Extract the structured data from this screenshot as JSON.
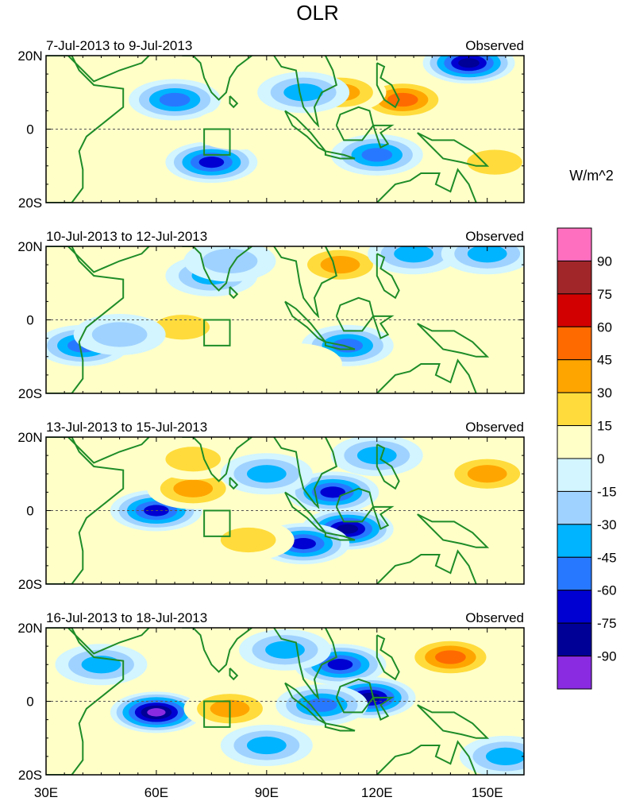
{
  "figure": {
    "title": "OLR",
    "units_label": "W/m^2"
  },
  "chart_data": {
    "type": "heatmap",
    "variable": "OLR anomaly",
    "x_ticks": [
      "30E",
      "60E",
      "90E",
      "120E",
      "150E"
    ],
    "x_tick_values": [
      30,
      60,
      90,
      120,
      150
    ],
    "y_ticks": [
      "20N",
      "0",
      "20S"
    ],
    "y_tick_values": [
      20,
      0,
      -20
    ],
    "xlim": [
      30,
      160
    ],
    "ylim": [
      -20,
      20
    ],
    "colorbar": {
      "labels": [
        "90",
        "75",
        "60",
        "45",
        "30",
        "15",
        "0",
        "-15",
        "-30",
        "-45",
        "-60",
        "-75",
        "-90"
      ],
      "levels": [
        90,
        75,
        60,
        45,
        30,
        15,
        0,
        -15,
        -30,
        -45,
        -60,
        -75,
        -90
      ],
      "colors": [
        "#ff6fc0",
        "#a0262a",
        "#d20000",
        "#ff6a00",
        "#ffa500",
        "#ffdc3c",
        "#ffffc8",
        "#d2f5ff",
        "#a0d2ff",
        "#00b4ff",
        "#2878ff",
        "#0000d2",
        "#000096",
        "#8a2be2"
      ]
    },
    "panels": [
      {
        "period": "7-Jul-2013 to 9-Jul-2013",
        "tag": "Observed",
        "anomalies": [
          {
            "lon": 145,
            "lat": 18,
            "value": -80
          },
          {
            "lon": 127,
            "lat": 8,
            "value": 50
          },
          {
            "lon": 110,
            "lat": 10,
            "value": 35
          },
          {
            "lon": 75,
            "lat": -9,
            "value": -65
          },
          {
            "lon": 65,
            "lat": 8,
            "value": -55
          },
          {
            "lon": 100,
            "lat": 10,
            "value": -40
          },
          {
            "lon": 120,
            "lat": -7,
            "value": -55
          },
          {
            "lon": 152,
            "lat": -9,
            "value": 25
          },
          {
            "lon": 45,
            "lat": 0,
            "value": 15
          },
          {
            "lon": 82,
            "lat": 0,
            "value": 15
          }
        ]
      },
      {
        "period": "10-Jul-2013 to 12-Jul-2013",
        "tag": "Observed",
        "anomalies": [
          {
            "lon": 110,
            "lat": 15,
            "value": 40
          },
          {
            "lon": 75,
            "lat": 12,
            "value": -35
          },
          {
            "lon": 67,
            "lat": -2,
            "value": 25
          },
          {
            "lon": 40,
            "lat": -7,
            "value": -55
          },
          {
            "lon": 50,
            "lat": -4,
            "value": -30
          },
          {
            "lon": 112,
            "lat": -7,
            "value": -60
          },
          {
            "lon": 130,
            "lat": 18,
            "value": -45
          },
          {
            "lon": 80,
            "lat": 16,
            "value": -30
          },
          {
            "lon": 150,
            "lat": 18,
            "value": -40
          },
          {
            "lon": 98,
            "lat": -12,
            "value": 15
          }
        ]
      },
      {
        "period": "13-Jul-2013 to 15-Jul-2013",
        "tag": "Observed",
        "anomalies": [
          {
            "lon": 108,
            "lat": 5,
            "value": -75
          },
          {
            "lon": 112,
            "lat": -5,
            "value": -85
          },
          {
            "lon": 100,
            "lat": -9,
            "value": -70
          },
          {
            "lon": 60,
            "lat": 0,
            "value": -75
          },
          {
            "lon": 150,
            "lat": 10,
            "value": 45
          },
          {
            "lon": 70,
            "lat": 6,
            "value": 35
          },
          {
            "lon": 70,
            "lat": 14,
            "value": 20
          },
          {
            "lon": 85,
            "lat": -8,
            "value": 20
          },
          {
            "lon": 90,
            "lat": 10,
            "value": -45
          },
          {
            "lon": 120,
            "lat": 15,
            "value": -40
          }
        ]
      },
      {
        "period": "16-Jul-2013 to 18-Jul-2013",
        "tag": "Observed",
        "anomalies": [
          {
            "lon": 60,
            "lat": -3,
            "value": -95
          },
          {
            "lon": 80,
            "lat": -2,
            "value": 40
          },
          {
            "lon": 140,
            "lat": 12,
            "value": 50
          },
          {
            "lon": 110,
            "lat": 10,
            "value": -70
          },
          {
            "lon": 118,
            "lat": 1,
            "value": -80
          },
          {
            "lon": 105,
            "lat": -1,
            "value": -60
          },
          {
            "lon": 45,
            "lat": 10,
            "value": -40
          },
          {
            "lon": 95,
            "lat": 14,
            "value": -35
          },
          {
            "lon": 90,
            "lat": -12,
            "value": -40
          },
          {
            "lon": 155,
            "lat": -15,
            "value": -45
          }
        ]
      }
    ],
    "reference_box": {
      "lon": [
        73,
        80
      ],
      "lat": [
        -7,
        0
      ]
    }
  }
}
